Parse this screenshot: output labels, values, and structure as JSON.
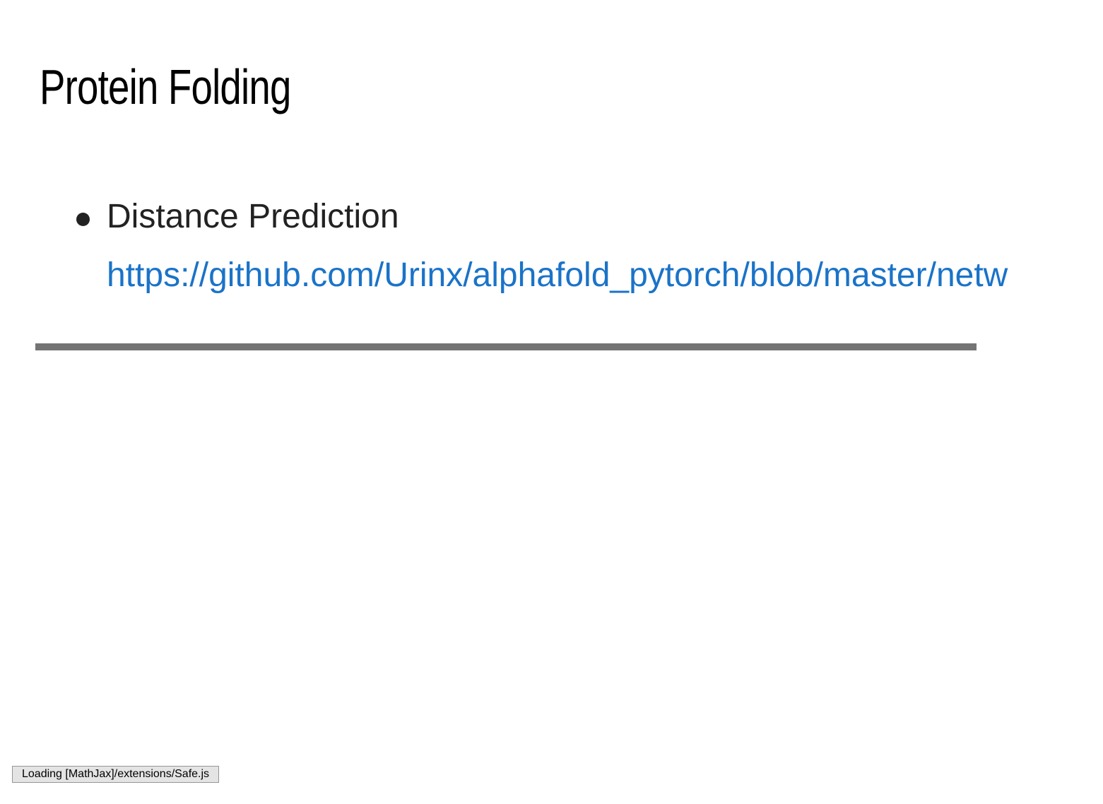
{
  "slide": {
    "title": "Protein Folding",
    "bullets": [
      {
        "label": "Distance Prediction",
        "link": "https://github.com/Urinx/alphafold_pytorch/blob/master/netw"
      }
    ]
  },
  "progress": {
    "fraction": 1.0
  },
  "status": {
    "message": "Loading [MathJax]/extensions/Safe.js"
  },
  "colors": {
    "link": "#1a73c8",
    "progress_bar": "#747474",
    "text": "#222222"
  }
}
